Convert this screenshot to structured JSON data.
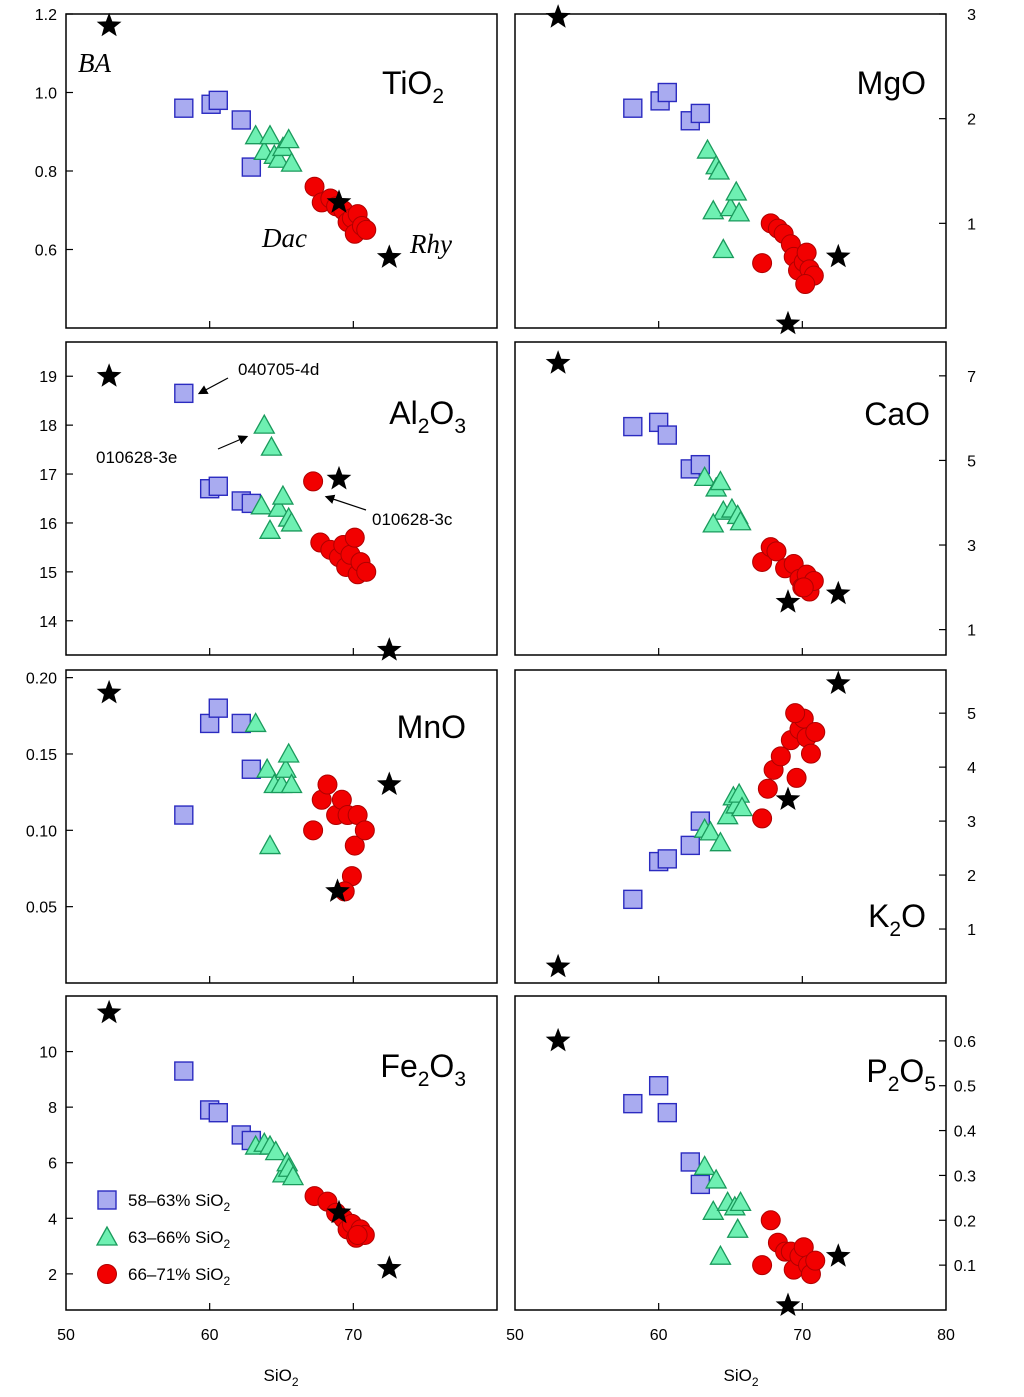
{
  "chart_data": {
    "type": "scatter",
    "xlabel": "SiO₂",
    "x_tick_labels_left": [
      "50",
      "60",
      "70"
    ],
    "x_tick_labels_right": [
      "50",
      "60",
      "70",
      "80"
    ],
    "xlim": [
      50,
      80
    ],
    "series_colors": {
      "low": "#a9abf0",
      "mid": "#6ef0b2",
      "high": "#f20000",
      "endmember": "#000000"
    },
    "legend": [
      {
        "key": "low",
        "marker": "square",
        "text": "58–63% SiO",
        "sub": "2"
      },
      {
        "key": "mid",
        "marker": "triangle",
        "text": "63–66% SiO",
        "sub": "2"
      },
      {
        "key": "high",
        "marker": "circle",
        "text": "66–71% SiO",
        "sub": "2"
      }
    ],
    "panels": [
      {
        "id": "tio2",
        "label": "TiO",
        "sub": "2",
        "sub_after": "",
        "axis_side": "left",
        "ylim": [
          0.4,
          1.2
        ],
        "yticks": [
          0.6,
          0.8,
          1.0,
          1.2
        ],
        "ytick_labels": [
          "0.6",
          "0.8",
          "1.0",
          "1.2"
        ],
        "low": [
          [
            58.2,
            0.96
          ],
          [
            60.1,
            0.97
          ],
          [
            60.6,
            0.98
          ],
          [
            62.2,
            0.93
          ],
          [
            62.9,
            0.81
          ]
        ],
        "mid": [
          [
            63.2,
            0.89
          ],
          [
            63.8,
            0.85
          ],
          [
            64.2,
            0.89
          ],
          [
            64.5,
            0.84
          ],
          [
            64.8,
            0.83
          ],
          [
            65.1,
            0.86
          ],
          [
            65.5,
            0.88
          ],
          [
            65.7,
            0.82
          ]
        ],
        "high": [
          [
            67.3,
            0.76
          ],
          [
            67.8,
            0.72
          ],
          [
            68.4,
            0.73
          ],
          [
            68.8,
            0.71
          ],
          [
            69.3,
            0.7
          ],
          [
            69.6,
            0.67
          ],
          [
            69.9,
            0.68
          ],
          [
            70.1,
            0.64
          ],
          [
            70.3,
            0.69
          ],
          [
            70.6,
            0.66
          ],
          [
            70.9,
            0.65
          ]
        ],
        "stars": [
          [
            53.0,
            1.17
          ],
          [
            69.0,
            0.72
          ],
          [
            72.5,
            0.58
          ]
        ],
        "annotations": [
          {
            "text": "BA",
            "type": "rock"
          },
          {
            "text": "Dac",
            "type": "rock"
          },
          {
            "text": "Rhy",
            "type": "rock"
          }
        ]
      },
      {
        "id": "mgo",
        "label": "MgO",
        "sub": "",
        "sub_after": "",
        "axis_side": "right",
        "ylim": [
          0.0,
          3.0
        ],
        "yticks": [
          1,
          2,
          3
        ],
        "ytick_labels": [
          "1",
          "2",
          "3"
        ],
        "low": [
          [
            58.2,
            2.1
          ],
          [
            60.1,
            2.17
          ],
          [
            60.6,
            2.25
          ],
          [
            62.2,
            1.98
          ],
          [
            62.9,
            2.05
          ]
        ],
        "mid": [
          [
            63.4,
            1.7
          ],
          [
            64.0,
            1.55
          ],
          [
            64.2,
            1.5
          ],
          [
            63.8,
            1.12
          ],
          [
            64.5,
            0.75
          ],
          [
            65.0,
            1.15
          ],
          [
            65.4,
            1.3
          ],
          [
            65.6,
            1.1
          ]
        ],
        "high": [
          [
            67.2,
            0.62
          ],
          [
            67.8,
            1.0
          ],
          [
            68.3,
            0.95
          ],
          [
            68.7,
            0.9
          ],
          [
            69.2,
            0.8
          ],
          [
            69.4,
            0.68
          ],
          [
            69.7,
            0.55
          ],
          [
            70.1,
            0.63
          ],
          [
            70.3,
            0.72
          ],
          [
            70.5,
            0.56
          ],
          [
            70.8,
            0.5
          ],
          [
            70.2,
            0.42
          ]
        ],
        "stars": [
          [
            53.0,
            2.97
          ],
          [
            72.5,
            0.68
          ],
          [
            69.0,
            0.04
          ]
        ],
        "annotations": []
      },
      {
        "id": "al2o3",
        "label": "Al",
        "sub": "2",
        "label_mid": "O",
        "sub_after": "3",
        "axis_side": "left",
        "ylim": [
          13.3,
          19.7
        ],
        "yticks": [
          14,
          15,
          16,
          17,
          18,
          19
        ],
        "ytick_labels": [
          "14",
          "15",
          "16",
          "17",
          "18",
          "19"
        ],
        "low": [
          [
            58.2,
            18.65
          ],
          [
            60.0,
            16.7
          ],
          [
            60.6,
            16.75
          ],
          [
            62.2,
            16.45
          ],
          [
            62.9,
            16.4
          ]
        ],
        "mid": [
          [
            63.8,
            18.0
          ],
          [
            64.3,
            17.55
          ],
          [
            63.6,
            16.35
          ],
          [
            64.2,
            15.85
          ],
          [
            64.8,
            16.3
          ],
          [
            65.1,
            16.55
          ],
          [
            65.5,
            16.1
          ],
          [
            65.7,
            16.0
          ]
        ],
        "high": [
          [
            67.2,
            16.85
          ],
          [
            67.7,
            15.6
          ],
          [
            68.4,
            15.45
          ],
          [
            69.0,
            15.3
          ],
          [
            69.3,
            15.55
          ],
          [
            69.5,
            15.1
          ],
          [
            69.8,
            15.35
          ],
          [
            70.1,
            15.7
          ],
          [
            70.3,
            14.95
          ],
          [
            70.5,
            15.2
          ],
          [
            70.9,
            15.0
          ]
        ],
        "stars": [
          [
            53.0,
            19.0
          ],
          [
            69.0,
            16.9
          ],
          [
            72.5,
            13.4
          ]
        ],
        "annotations": [
          {
            "text": "040705-4d",
            "type": "sample"
          },
          {
            "text": "010628-3e",
            "type": "sample"
          },
          {
            "text": "010628-3c",
            "type": "sample"
          }
        ]
      },
      {
        "id": "cao",
        "label": "CaO",
        "sub": "",
        "sub_after": "",
        "axis_side": "right",
        "ylim": [
          0.4,
          7.8
        ],
        "yticks": [
          1,
          3,
          5,
          7
        ],
        "ytick_labels": [
          "1",
          "3",
          "5",
          "7"
        ],
        "low": [
          [
            58.2,
            5.8
          ],
          [
            60.0,
            5.9
          ],
          [
            60.6,
            5.6
          ],
          [
            62.2,
            4.8
          ],
          [
            62.9,
            4.9
          ]
        ],
        "mid": [
          [
            63.2,
            4.6
          ],
          [
            64.0,
            4.35
          ],
          [
            64.3,
            4.5
          ],
          [
            64.5,
            3.8
          ],
          [
            63.8,
            3.5
          ],
          [
            65.1,
            3.85
          ],
          [
            65.5,
            3.7
          ],
          [
            65.7,
            3.55
          ]
        ],
        "high": [
          [
            67.2,
            2.6
          ],
          [
            67.8,
            2.95
          ],
          [
            68.2,
            2.85
          ],
          [
            68.8,
            2.45
          ],
          [
            69.4,
            2.55
          ],
          [
            69.8,
            2.2
          ],
          [
            70.0,
            2.0
          ],
          [
            70.3,
            2.3
          ],
          [
            70.5,
            1.9
          ],
          [
            70.8,
            2.15
          ],
          [
            70.1,
            2.0
          ]
        ],
        "stars": [
          [
            53.0,
            7.3
          ],
          [
            72.5,
            1.85
          ],
          [
            69.0,
            1.65
          ]
        ],
        "annotations": []
      },
      {
        "id": "mno",
        "label": "MnO",
        "sub": "",
        "sub_after": "",
        "axis_side": "left",
        "ylim": [
          0.0,
          0.205
        ],
        "yticks": [
          0.05,
          0.1,
          0.15,
          0.2
        ],
        "ytick_labels": [
          "0.05",
          "0.10",
          "0.15",
          "0.20"
        ],
        "low": [
          [
            58.2,
            0.11
          ],
          [
            60.0,
            0.17
          ],
          [
            60.6,
            0.18
          ],
          [
            62.2,
            0.17
          ],
          [
            62.9,
            0.14
          ]
        ],
        "mid": [
          [
            63.2,
            0.17
          ],
          [
            64.0,
            0.14
          ],
          [
            64.2,
            0.09
          ],
          [
            64.5,
            0.13
          ],
          [
            65.0,
            0.13
          ],
          [
            65.3,
            0.14
          ],
          [
            65.5,
            0.15
          ],
          [
            65.7,
            0.13
          ]
        ],
        "high": [
          [
            67.2,
            0.1
          ],
          [
            67.8,
            0.12
          ],
          [
            68.2,
            0.13
          ],
          [
            68.8,
            0.11
          ],
          [
            69.2,
            0.12
          ],
          [
            69.6,
            0.11
          ],
          [
            69.9,
            0.07
          ],
          [
            70.1,
            0.09
          ],
          [
            70.3,
            0.11
          ],
          [
            70.8,
            0.1
          ],
          [
            69.4,
            0.06
          ]
        ],
        "stars": [
          [
            53.0,
            0.19
          ],
          [
            72.5,
            0.13
          ],
          [
            68.9,
            0.06
          ]
        ],
        "annotations": []
      },
      {
        "id": "k2o",
        "label": "K",
        "sub": "2",
        "label_mid": "O",
        "sub_after": "",
        "axis_side": "right",
        "ylim": [
          0.0,
          5.8
        ],
        "yticks": [
          1,
          2,
          3,
          4,
          5
        ],
        "ytick_labels": [
          "1",
          "2",
          "3",
          "4",
          "5"
        ],
        "low": [
          [
            58.2,
            1.55
          ],
          [
            60.0,
            2.25
          ],
          [
            60.6,
            2.3
          ],
          [
            62.2,
            2.55
          ],
          [
            62.9,
            3.0
          ]
        ],
        "mid": [
          [
            63.2,
            2.85
          ],
          [
            63.6,
            2.8
          ],
          [
            64.3,
            2.6
          ],
          [
            64.8,
            3.1
          ],
          [
            65.2,
            3.45
          ],
          [
            65.4,
            3.3
          ],
          [
            65.6,
            3.5
          ],
          [
            65.8,
            3.25
          ]
        ],
        "high": [
          [
            67.2,
            3.05
          ],
          [
            67.6,
            3.6
          ],
          [
            68.0,
            3.95
          ],
          [
            68.5,
            4.2
          ],
          [
            69.2,
            4.5
          ],
          [
            69.6,
            3.8
          ],
          [
            69.8,
            4.7
          ],
          [
            70.1,
            4.9
          ],
          [
            70.3,
            4.55
          ],
          [
            70.6,
            4.25
          ],
          [
            70.9,
            4.65
          ],
          [
            69.5,
            5.0
          ]
        ],
        "stars": [
          [
            53.0,
            0.3
          ],
          [
            69.0,
            3.4
          ],
          [
            72.5,
            5.55
          ]
        ],
        "annotations": []
      },
      {
        "id": "fe2o3",
        "label": "Fe",
        "sub": "2",
        "label_mid": "O",
        "sub_after": "3",
        "axis_side": "left",
        "ylim": [
          0.7,
          12.0
        ],
        "yticks": [
          2,
          4,
          6,
          8,
          10
        ],
        "ytick_labels": [
          "2",
          "4",
          "6",
          "8",
          "10"
        ],
        "low": [
          [
            58.2,
            9.3
          ],
          [
            60.0,
            7.9
          ],
          [
            60.6,
            7.8
          ],
          [
            62.2,
            7.0
          ],
          [
            62.9,
            6.8
          ]
        ],
        "mid": [
          [
            63.2,
            6.6
          ],
          [
            63.8,
            6.7
          ],
          [
            64.2,
            6.6
          ],
          [
            64.6,
            6.4
          ],
          [
            65.1,
            5.6
          ],
          [
            65.4,
            6.0
          ],
          [
            65.5,
            5.8
          ],
          [
            65.8,
            5.5
          ]
        ],
        "high": [
          [
            67.3,
            4.8
          ],
          [
            68.2,
            4.6
          ],
          [
            68.8,
            4.2
          ],
          [
            69.3,
            4.0
          ],
          [
            69.6,
            3.6
          ],
          [
            69.9,
            3.8
          ],
          [
            70.2,
            3.3
          ],
          [
            70.5,
            3.6
          ],
          [
            70.8,
            3.4
          ],
          [
            70.3,
            3.4
          ]
        ],
        "stars": [
          [
            53.0,
            11.4
          ],
          [
            69.0,
            4.2
          ],
          [
            72.5,
            2.2
          ]
        ],
        "annotations": []
      },
      {
        "id": "p2o5",
        "label": "P",
        "sub": "2",
        "label_mid": "O",
        "sub_after": "5",
        "axis_side": "right",
        "ylim": [
          0.0,
          0.7
        ],
        "yticks": [
          0.1,
          0.2,
          0.3,
          0.4,
          0.5,
          0.6
        ],
        "ytick_labels": [
          "0.1",
          "0.2",
          "0.3",
          "0.4",
          "0.5",
          "0.6"
        ],
        "low": [
          [
            58.2,
            0.46
          ],
          [
            60.0,
            0.5
          ],
          [
            60.6,
            0.44
          ],
          [
            62.2,
            0.33
          ],
          [
            62.9,
            0.28
          ]
        ],
        "mid": [
          [
            63.2,
            0.32
          ],
          [
            63.8,
            0.22
          ],
          [
            64.0,
            0.29
          ],
          [
            64.3,
            0.12
          ],
          [
            64.8,
            0.24
          ],
          [
            65.3,
            0.23
          ],
          [
            65.5,
            0.18
          ],
          [
            65.7,
            0.24
          ]
        ],
        "high": [
          [
            67.2,
            0.1
          ],
          [
            67.8,
            0.2
          ],
          [
            68.3,
            0.15
          ],
          [
            68.8,
            0.13
          ],
          [
            69.2,
            0.13
          ],
          [
            69.4,
            0.09
          ],
          [
            69.8,
            0.12
          ],
          [
            70.1,
            0.14
          ],
          [
            70.4,
            0.1
          ],
          [
            70.6,
            0.08
          ],
          [
            70.9,
            0.11
          ]
        ],
        "stars": [
          [
            53.0,
            0.6
          ],
          [
            72.5,
            0.12
          ],
          [
            69.0,
            0.01
          ]
        ],
        "annotations": []
      }
    ]
  }
}
